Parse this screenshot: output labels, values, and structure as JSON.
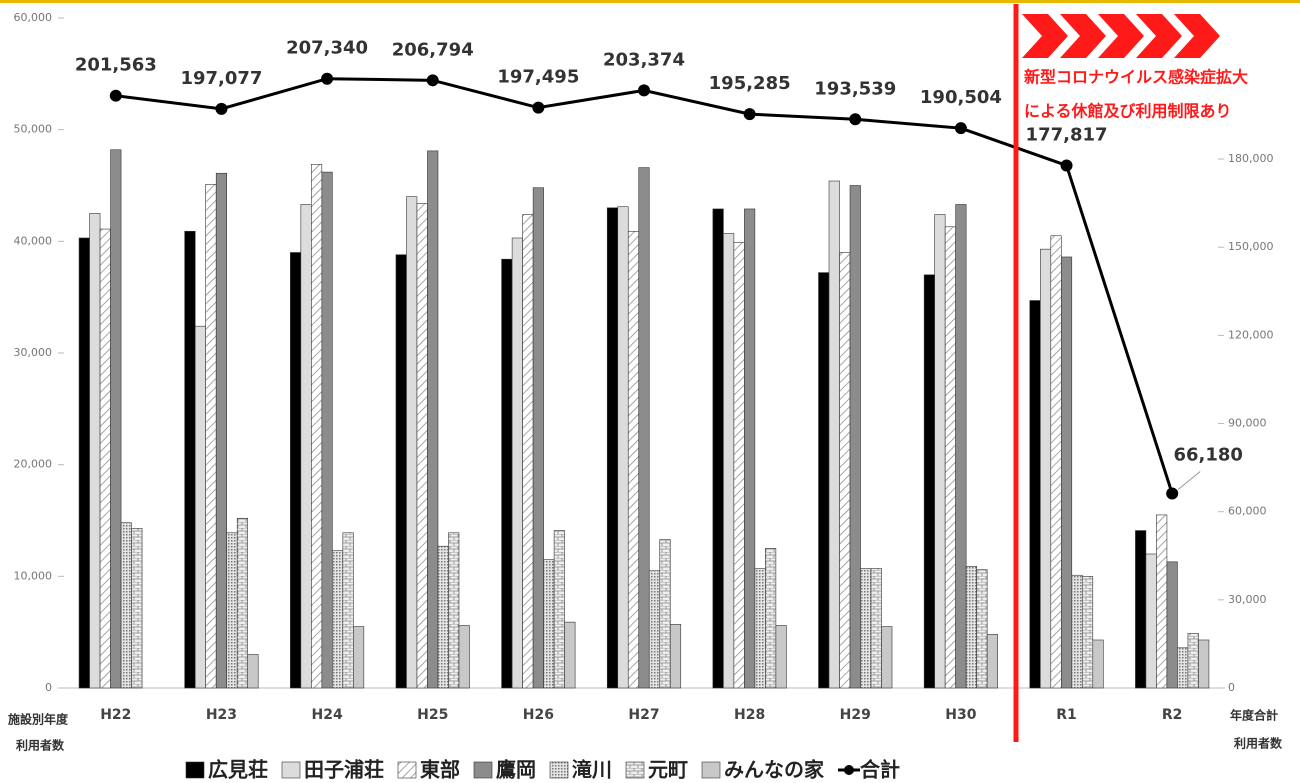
{
  "chart_data": {
    "type": "bar_line",
    "categories": [
      "H22",
      "H23",
      "H24",
      "H25",
      "H26",
      "H27",
      "H28",
      "H29",
      "H30",
      "R1",
      "R2"
    ],
    "series": [
      {
        "name": "広見荘",
        "color": "#000000",
        "values": [
          40300,
          40900,
          39000,
          38800,
          38400,
          43000,
          42900,
          37200,
          37000,
          34700,
          14100
        ]
      },
      {
        "name": "田子浦荘",
        "color": "#dcdcdc",
        "values": [
          42500,
          32400,
          43300,
          44000,
          40300,
          43100,
          40700,
          45400,
          42400,
          39300,
          12000
        ]
      },
      {
        "name": "東部",
        "color": "#ffffff",
        "values": [
          41100,
          45100,
          46900,
          43400,
          42400,
          40900,
          39900,
          39000,
          41300,
          40500,
          15500
        ]
      },
      {
        "name": "鷹岡",
        "color": "#8c8c8c",
        "values": [
          48200,
          46100,
          46200,
          48100,
          44800,
          46600,
          42900,
          45000,
          43300,
          38600,
          11300
        ]
      },
      {
        "name": "滝川",
        "color": "#bdbdbd",
        "values": [
          14800,
          13900,
          12300,
          12700,
          11500,
          10500,
          10700,
          10700,
          10900,
          10100,
          3600
        ]
      },
      {
        "name": "元町",
        "color": "#d0d0d0",
        "values": [
          14300,
          15200,
          13900,
          13900,
          14100,
          13300,
          12500,
          10700,
          10600,
          10000,
          4900
        ]
      },
      {
        "name": "みんなの家",
        "color": "#c8c8c8",
        "values": [
          null,
          3000,
          5500,
          5600,
          5900,
          5700,
          5600,
          5500,
          4800,
          4300,
          4300
        ]
      },
      {
        "name": "合計",
        "color": "#000000",
        "axis": "y2",
        "type": "line",
        "values": [
          201563,
          197077,
          207340,
          206794,
          197495,
          203374,
          195285,
          193539,
          190504,
          177817,
          66180
        ],
        "value_labels": [
          "201,563",
          "197,077",
          "207,340",
          "206,794",
          "197,495",
          "203,374",
          "195,285",
          "193,539",
          "190,504",
          "177,817",
          "66,180"
        ]
      }
    ],
    "ylim": [
      0,
      60000
    ],
    "yticks": [
      0,
      {
        "value": 10000,
        "label": "10,000"
      },
      {
        "value": 20000,
        "label": "20,000"
      },
      {
        "value": 30000,
        "label": "30,000"
      },
      {
        "value": 40000,
        "label": "40,000"
      },
      {
        "value": 50000,
        "label": "50,000"
      },
      {
        "value": 60000,
        "label": "60,000"
      }
    ],
    "y2lim": [
      0,
      228000
    ],
    "y2ticks": [
      0,
      {
        "value": 30000,
        "label": "30,000"
      },
      {
        "value": 60000,
        "label": "60,000"
      },
      {
        "value": 90000,
        "label": "90,000"
      },
      {
        "value": 120000,
        "label": "120,000"
      },
      {
        "value": 150000,
        "label": "150,000"
      },
      {
        "value": 180000,
        "label": "180,000"
      }
    ],
    "ylabel": [
      "施設別年度",
      "利用者数"
    ],
    "y2label": [
      "年度合計",
      "利用者数"
    ],
    "annotation": [
      "新型コロナウイルス感染症拡大",
      "による休館及び利用制限あり"
    ],
    "grid": false
  }
}
